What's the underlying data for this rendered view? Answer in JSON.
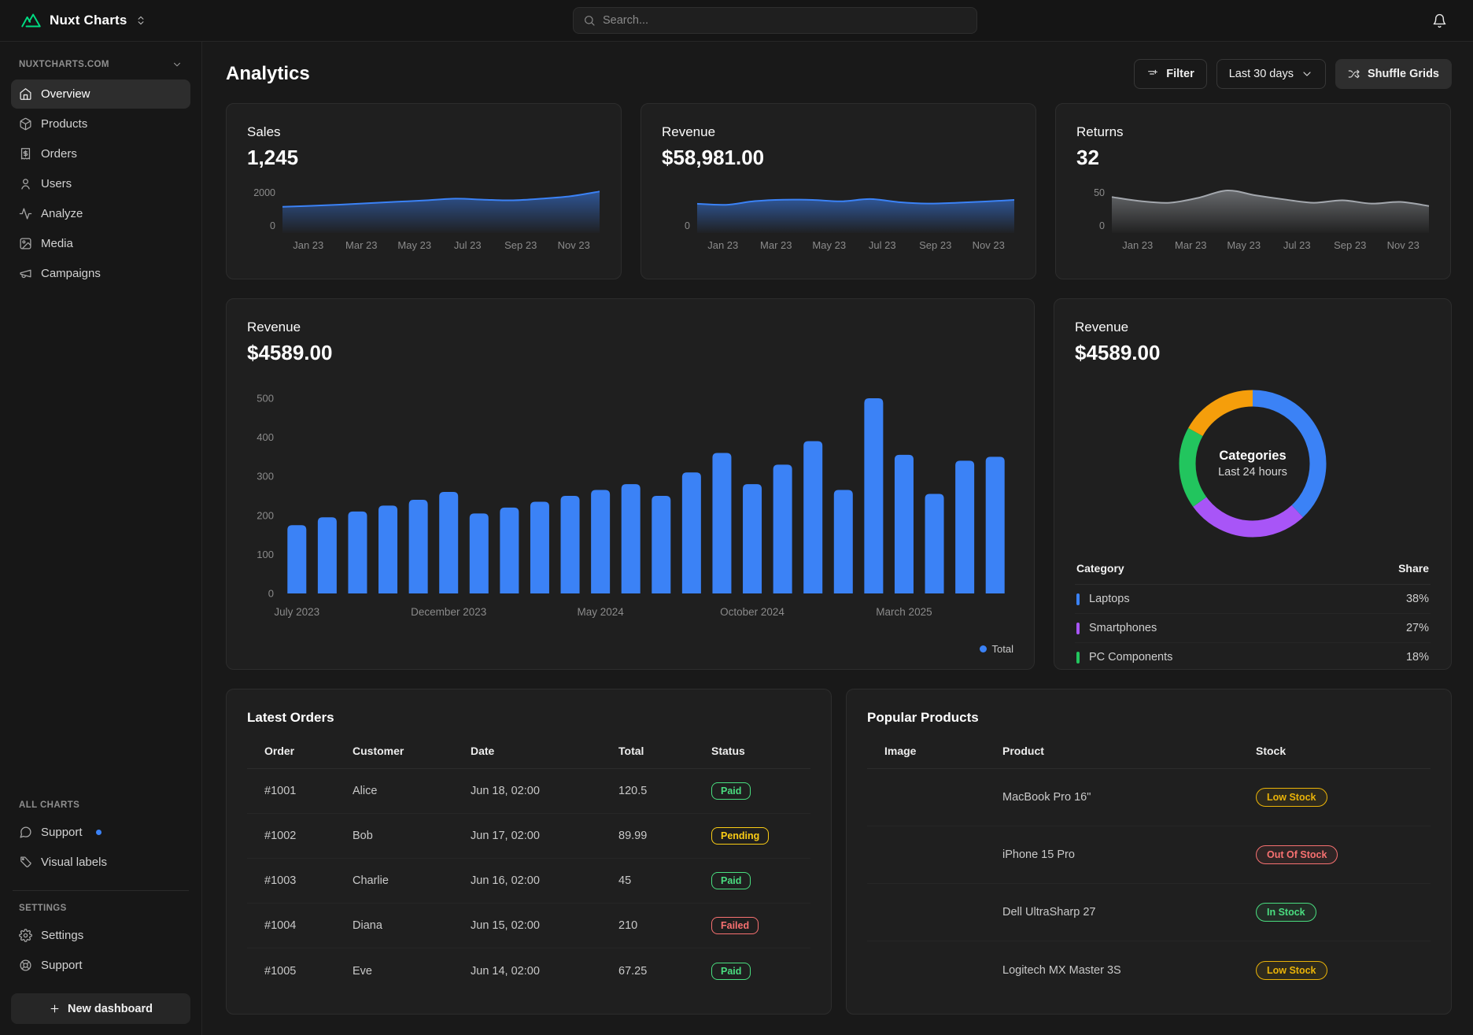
{
  "topbar": {
    "brand": "Nuxt Charts",
    "search_placeholder": "Search..."
  },
  "sidebar": {
    "workspace": "NUXTCHARTS.COM",
    "menu": [
      {
        "icon": "home",
        "label": "Overview",
        "active": true
      },
      {
        "icon": "box",
        "label": "Products"
      },
      {
        "icon": "receipt",
        "label": "Orders"
      },
      {
        "icon": "user",
        "label": "Users"
      },
      {
        "icon": "activity",
        "label": "Analyze"
      },
      {
        "icon": "image",
        "label": "Media"
      },
      {
        "icon": "megaphone",
        "label": "Campaigns"
      }
    ],
    "all_charts_label": "ALL CHARTS",
    "all_charts": [
      {
        "icon": "message",
        "label": "Support",
        "dot": true
      },
      {
        "icon": "tag",
        "label": "Visual labels"
      }
    ],
    "settings_label": "SETTINGS",
    "settings": [
      {
        "icon": "gear",
        "label": "Settings"
      },
      {
        "icon": "lifebuoy",
        "label": "Support"
      }
    ],
    "new_dashboard_label": "New dashboard"
  },
  "header": {
    "title": "Analytics",
    "filter_label": "Filter",
    "range_value": "Last 30 days",
    "shuffle_label": "Shuffle Grids"
  },
  "accent_blue": "#3b82f6",
  "chart_data": [
    {
      "id": "sales-spark",
      "type": "area",
      "title": "Sales",
      "value": "1,245",
      "color": "#3b82f6",
      "ylim": [
        0,
        2000
      ],
      "yticks": [
        2000,
        0
      ],
      "x": [
        "Jan 23",
        "Mar 23",
        "May 23",
        "Jul 23",
        "Sep 23",
        "Nov 23"
      ],
      "values": [
        1200,
        1250,
        1310,
        1380,
        1450,
        1520,
        1600,
        1550,
        1520,
        1600,
        1720,
        1950
      ]
    },
    {
      "id": "revenue-spark",
      "type": "area",
      "title": "Revenue",
      "value": "$58,981.00",
      "color": "#3b82f6",
      "ylim": [
        0,
        2000
      ],
      "yticks": [
        0
      ],
      "x": [
        "Jan 23",
        "Mar 23",
        "May 23",
        "Jul 23",
        "Sep 23",
        "Nov 23"
      ],
      "values": [
        1350,
        1300,
        1480,
        1550,
        1540,
        1470,
        1580,
        1430,
        1360,
        1400,
        1460,
        1540
      ]
    },
    {
      "id": "returns-spark",
      "type": "area",
      "title": "Returns",
      "value": "32",
      "color": "#a3a7ad",
      "ylim": [
        0,
        50
      ],
      "yticks": [
        50,
        0
      ],
      "x": [
        "Jan 23",
        "Mar 23",
        "May 23",
        "Jul 23",
        "Sep 23",
        "Nov 23"
      ],
      "values": [
        42,
        37,
        35,
        41,
        50,
        44,
        39,
        35,
        38,
        34,
        36,
        31
      ]
    },
    {
      "id": "revenue-bars",
      "type": "bar",
      "title": "Revenue",
      "value": "$4589.00",
      "color": "#3b82f6",
      "ylim": [
        0,
        500
      ],
      "yticks": [
        0,
        100,
        200,
        300,
        400,
        500
      ],
      "values": [
        175,
        195,
        210,
        225,
        240,
        260,
        205,
        220,
        235,
        250,
        265,
        280,
        250,
        310,
        360,
        280,
        330,
        390,
        265,
        500,
        355,
        255,
        340,
        350
      ],
      "x_ticks": [
        {
          "index": 0,
          "label": "July 2023"
        },
        {
          "index": 5,
          "label": "December 2023"
        },
        {
          "index": 10,
          "label": "May 2024"
        },
        {
          "index": 15,
          "label": "October 2024"
        },
        {
          "index": 20,
          "label": "March 2025"
        }
      ],
      "legend": [
        {
          "label": "Total",
          "color": "#3b82f6"
        }
      ]
    },
    {
      "id": "categories-donut",
      "type": "pie",
      "title": "Revenue",
      "value": "$4589.00",
      "center_title": "Categories",
      "center_subtitle": "Last 24 hours",
      "segments": [
        {
          "label": "Laptops",
          "value": 38,
          "color": "#3b82f6"
        },
        {
          "label": "Smartphones",
          "value": 27,
          "color": "#a855f7"
        },
        {
          "label": "PC Components",
          "value": 18,
          "color": "#22c55e"
        },
        {
          "label": "",
          "value": 17,
          "color": "#f59e0b"
        }
      ]
    }
  ],
  "categories_table": {
    "col_category": "Category",
    "col_share": "Share",
    "rows": [
      {
        "label": "Laptops",
        "share": "38%",
        "color": "#3b82f6"
      },
      {
        "label": "Smartphones",
        "share": "27%",
        "color": "#a855f7"
      },
      {
        "label": "PC Components",
        "share": "18%",
        "color": "#22c55e"
      }
    ]
  },
  "orders": {
    "title": "Latest Orders",
    "columns": [
      "Order",
      "Customer",
      "Date",
      "Total",
      "Status"
    ],
    "rows": [
      {
        "order": "#1001",
        "customer": "Alice",
        "date": "Jun 18, 02:00",
        "total": "120.5",
        "status": "Paid"
      },
      {
        "order": "#1002",
        "customer": "Bob",
        "date": "Jun 17, 02:00",
        "total": "89.99",
        "status": "Pending"
      },
      {
        "order": "#1003",
        "customer": "Charlie",
        "date": "Jun 16, 02:00",
        "total": "45",
        "status": "Paid"
      },
      {
        "order": "#1004",
        "customer": "Diana",
        "date": "Jun 15, 02:00",
        "total": "210",
        "status": "Failed"
      },
      {
        "order": "#1005",
        "customer": "Eve",
        "date": "Jun 14, 02:00",
        "total": "67.25",
        "status": "Paid"
      }
    ],
    "status_colors": {
      "Paid": "#4ade80",
      "Pending": "#facc15",
      "Failed": "#f87171"
    }
  },
  "products": {
    "title": "Popular Products",
    "columns": [
      "Image",
      "Product",
      "Stock"
    ],
    "rows": [
      {
        "product": "MacBook Pro 16\"",
        "stock": "Low Stock",
        "image": "macbook"
      },
      {
        "product": "iPhone 15 Pro",
        "stock": "Out Of Stock",
        "image": "iphone"
      },
      {
        "product": "Dell UltraSharp 27",
        "stock": "In Stock",
        "image": "monitor"
      },
      {
        "product": "Logitech MX Master 3S",
        "stock": "Low Stock",
        "image": "mouse"
      }
    ],
    "stock_colors": {
      "Low Stock": "#eab308",
      "Out Of Stock": "#f87171",
      "In Stock": "#4ade80"
    }
  }
}
